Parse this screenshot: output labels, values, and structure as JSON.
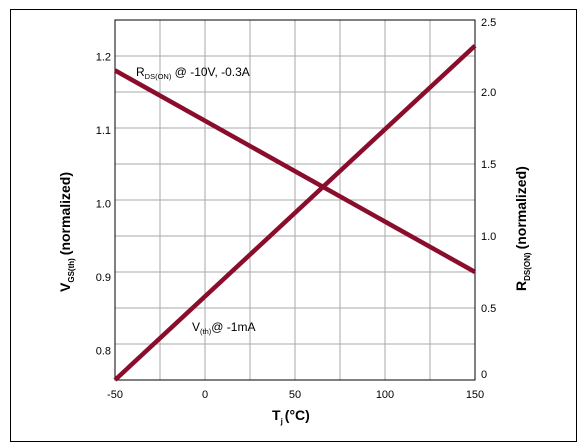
{
  "chart_data": {
    "type": "line",
    "x": {
      "label": "T",
      "label_sub": "j",
      "label_unit": "(°C)",
      "ticks": [
        -50,
        0,
        50,
        100,
        150
      ],
      "range": [
        -50,
        150
      ]
    },
    "y_left": {
      "label": "V",
      "label_sub": "GS(th)",
      "label_suffix": "(normalized)",
      "ticks": [
        0.8,
        0.9,
        1.0,
        1.1,
        1.2
      ],
      "tick_labels": [
        "0.8",
        "0.9",
        "1.0",
        "1.1",
        "1.2"
      ],
      "range": [
        0.76,
        1.25
      ]
    },
    "y_right": {
      "label": "R",
      "label_sub": "DS(ON)",
      "label_suffix": "(normalized)",
      "ticks": [
        0,
        0.5,
        1.0,
        1.5,
        2.0,
        2.5
      ],
      "tick_labels": [
        "0",
        "0.5",
        "1.0",
        "1.5",
        "2.0",
        "2.5"
      ],
      "range": [
        0,
        2.5
      ]
    },
    "grid": true,
    "series": [
      {
        "name": "RDS(ON) @ -10V, -0.3A",
        "axis": "right",
        "color": "#8b0d2c",
        "x": [
          -50,
          150
        ],
        "y": [
          2.15,
          0.75
        ]
      },
      {
        "name": "V(th)@ -1mA",
        "axis": "left",
        "color": "#8b0d2c",
        "x": [
          -50,
          150
        ],
        "y": [
          0.76,
          1.215
        ]
      }
    ],
    "annotations": [
      {
        "main": "R",
        "sub": "DS(ON)",
        "rest": " @ -10V, -0.3A"
      },
      {
        "main": "V",
        "sub": "(th)",
        "rest": "@ -1mA"
      }
    ]
  }
}
